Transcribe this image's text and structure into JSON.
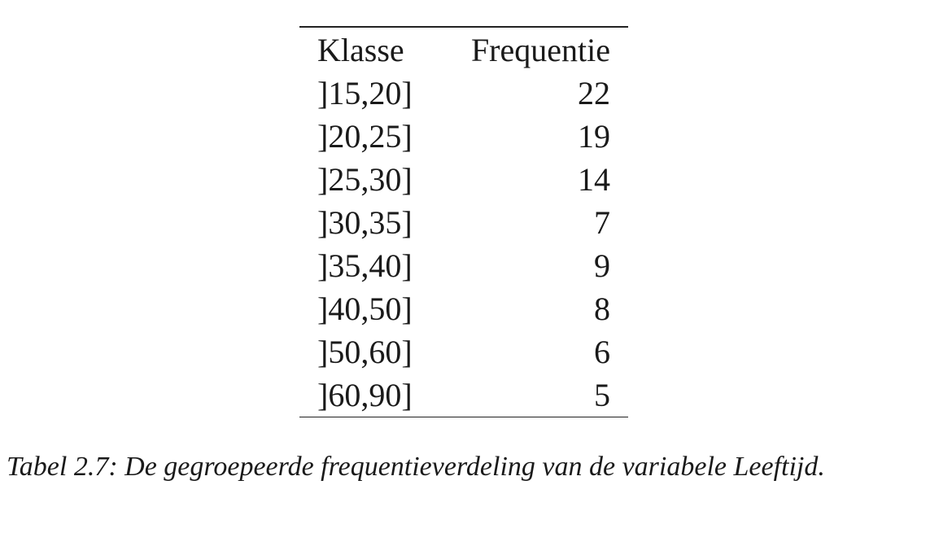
{
  "chart_data": {
    "type": "table",
    "columns": [
      "Klasse",
      "Frequentie"
    ],
    "rows": [
      {
        "klasse": "]15,20]",
        "frequentie": "22"
      },
      {
        "klasse": "]20,25]",
        "frequentie": "19"
      },
      {
        "klasse": "]25,30]",
        "frequentie": "14"
      },
      {
        "klasse": "]30,35]",
        "frequentie": "7"
      },
      {
        "klasse": "]35,40]",
        "frequentie": "9"
      },
      {
        "klasse": "]40,50]",
        "frequentie": "8"
      },
      {
        "klasse": "]50,60]",
        "frequentie": "6"
      },
      {
        "klasse": "]60,90]",
        "frequentie": "5"
      }
    ]
  },
  "caption": "Tabel 2.7: De gegroepeerde frequentieverdeling van de variabele Leeftijd."
}
